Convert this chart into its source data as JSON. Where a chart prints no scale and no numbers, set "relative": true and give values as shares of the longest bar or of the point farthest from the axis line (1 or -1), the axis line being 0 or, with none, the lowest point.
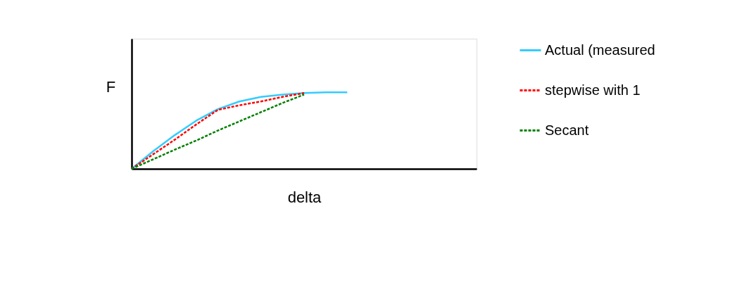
{
  "chart_data": {
    "type": "line",
    "relative": true,
    "xlabel": "delta",
    "ylabel": "F",
    "categories": [
      null,
      null,
      null,
      null,
      null,
      null,
      null,
      null,
      null,
      null,
      null
    ],
    "series": [
      {
        "name": "Actual (measured",
        "color": "#33ccff",
        "line_style": "solid",
        "values": [
          0,
          0.23,
          0.44,
          0.63,
          0.78,
          0.88,
          0.94,
          0.97,
          0.99,
          1.0,
          1.0
        ]
      },
      {
        "name": "stepwise with 1",
        "color": "#ff0000",
        "line_style": "dashed",
        "values": [
          0,
          0.19,
          0.38,
          0.58,
          0.77,
          0.83,
          0.88,
          0.94,
          0.99,
          null,
          null
        ]
      },
      {
        "name": "Secant",
        "color": "#008000",
        "line_style": "dashed",
        "values": [
          0,
          0.124,
          0.25,
          0.37,
          0.5,
          0.62,
          0.74,
          0.86,
          0.97,
          null,
          null
        ]
      }
    ],
    "legend": "right",
    "grid": false,
    "tick_labels": false,
    "marker": "none"
  }
}
